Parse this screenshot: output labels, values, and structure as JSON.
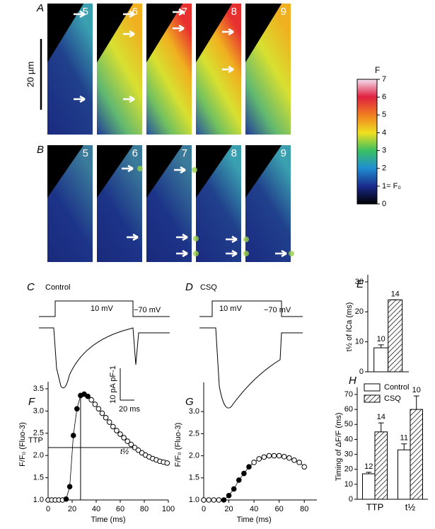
{
  "figure": {
    "A": {
      "label": "A",
      "frames": [
        5,
        6,
        7,
        8,
        9
      ],
      "scale_bar": "20 µm"
    },
    "B": {
      "label": "B",
      "frames": [
        5,
        6,
        7,
        8,
        9
      ]
    },
    "colorbar": {
      "title": "F",
      "ticks": [
        0,
        {
          "value": 1,
          "label": "1= F₀"
        },
        2,
        3,
        4,
        5,
        6,
        7
      ]
    },
    "C": {
      "label": "C",
      "title": "Control",
      "step": "10 mV",
      "hold": "−70 mV"
    },
    "D": {
      "label": "D",
      "title": "CSQ",
      "step": "10 mV",
      "hold": "−70 mV"
    },
    "scale_current": "10 pA pF-1",
    "scale_time": "20 ms"
  },
  "chart_data": [
    {
      "type": "line",
      "label": "F",
      "xlabel": "Time (ms)",
      "ylabel": "F/F₀ (Fluo-3)",
      "annotations": [
        "TTP",
        "t½"
      ],
      "xlim": [
        0,
        100
      ],
      "ylim": [
        1.0,
        3.5
      ],
      "xticks": [
        0,
        20,
        40,
        60,
        80,
        100
      ],
      "yticks": [
        {
          "value": 1.0,
          "label": "1.0"
        },
        {
          "value": 1.5,
          "label": "1.5"
        },
        {
          "value": 2.0,
          "label": "2.0"
        },
        {
          "value": 2.5,
          "label": "2.5"
        },
        {
          "value": 3.0,
          "label": "3.0"
        },
        {
          "value": 3.5,
          "label": "3.5"
        }
      ],
      "series": [
        {
          "color": "#000",
          "filled": false,
          "x": [
            0,
            3,
            6,
            9,
            12
          ],
          "values": [
            1.0,
            1.0,
            1.0,
            1.0,
            1.0
          ]
        },
        {
          "color": "#000",
          "filled": true,
          "x": [
            15,
            18,
            21,
            24,
            27,
            30,
            33
          ],
          "values": [
            1.02,
            1.3,
            2.45,
            3.05,
            3.35,
            3.38,
            3.33
          ]
        },
        {
          "color": "#000",
          "filled": false,
          "x": [
            36,
            39,
            42,
            45,
            48,
            51,
            54,
            57,
            60,
            63,
            66,
            69,
            72,
            75,
            78,
            81,
            84,
            87,
            90,
            93,
            96,
            99
          ],
          "values": [
            3.25,
            3.15,
            3.05,
            2.95,
            2.85,
            2.75,
            2.65,
            2.56,
            2.48,
            2.4,
            2.32,
            2.25,
            2.18,
            2.12,
            2.06,
            2.01,
            1.97,
            1.93,
            1.9,
            1.87,
            1.85,
            1.83
          ]
        }
      ]
    },
    {
      "type": "line",
      "label": "G",
      "xlabel": "Time (ms)",
      "ylabel": "F/F₀ (Fluo-3)",
      "xlim": [
        0,
        90
      ],
      "ylim": [
        1.0,
        3.5
      ],
      "xticks": [
        0,
        20,
        40,
        60,
        80
      ],
      "yticks": [
        {
          "value": 1.0,
          "label": "1.0"
        },
        {
          "value": 1.5,
          "label": "1.5"
        },
        {
          "value": 2.0,
          "label": "2.0"
        },
        {
          "value": 2.5,
          "label": "2.5"
        },
        {
          "value": 3.0,
          "label": "3.0"
        }
      ],
      "series": [
        {
          "color": "#000",
          "filled": false,
          "x": [
            0,
            4,
            8,
            12
          ],
          "values": [
            1.0,
            1.0,
            1.0,
            1.0
          ]
        },
        {
          "color": "#000",
          "filled": true,
          "x": [
            16,
            20,
            24,
            28,
            32,
            36
          ],
          "values": [
            1.0,
            1.1,
            1.25,
            1.45,
            1.6,
            1.75
          ]
        },
        {
          "color": "#000",
          "filled": false,
          "x": [
            40,
            44,
            48,
            52,
            56,
            60,
            64,
            68,
            72,
            76,
            80
          ],
          "values": [
            1.85,
            1.93,
            1.97,
            2.0,
            2.0,
            2.0,
            1.98,
            1.95,
            1.9,
            1.85,
            1.75
          ]
        }
      ]
    },
    {
      "type": "bar",
      "label": "E",
      "ylabel": "t½ of ICa (ms)",
      "ylim": [
        0,
        30
      ],
      "yticks": [
        0,
        10,
        20,
        30
      ],
      "series": [
        {
          "color": "#fff",
          "hatch": false,
          "values": [
            8
          ],
          "errors": [
            1
          ],
          "counts": [
            10
          ]
        },
        {
          "color": "#fff",
          "hatch": true,
          "values": [
            24
          ],
          "errors": [
            0
          ],
          "counts": [
            14
          ]
        }
      ]
    },
    {
      "type": "bar",
      "label": "H",
      "ylabel": "Timing of ΔF/F (ms)",
      "ylim": [
        0,
        70
      ],
      "yticks": [
        0,
        10,
        20,
        30,
        40,
        50,
        60,
        70
      ],
      "categories": [
        "TTP",
        "t½"
      ],
      "legend": "top-left",
      "series": [
        {
          "name": "Control",
          "color": "#fff",
          "hatch": false,
          "values": [
            17,
            33
          ],
          "errors": [
            1,
            4
          ],
          "counts": [
            12,
            11
          ]
        },
        {
          "name": "CSQ",
          "color": "#fff",
          "hatch": true,
          "values": [
            45,
            60
          ],
          "errors": [
            6,
            9
          ],
          "counts": [
            14,
            10
          ]
        }
      ]
    }
  ]
}
